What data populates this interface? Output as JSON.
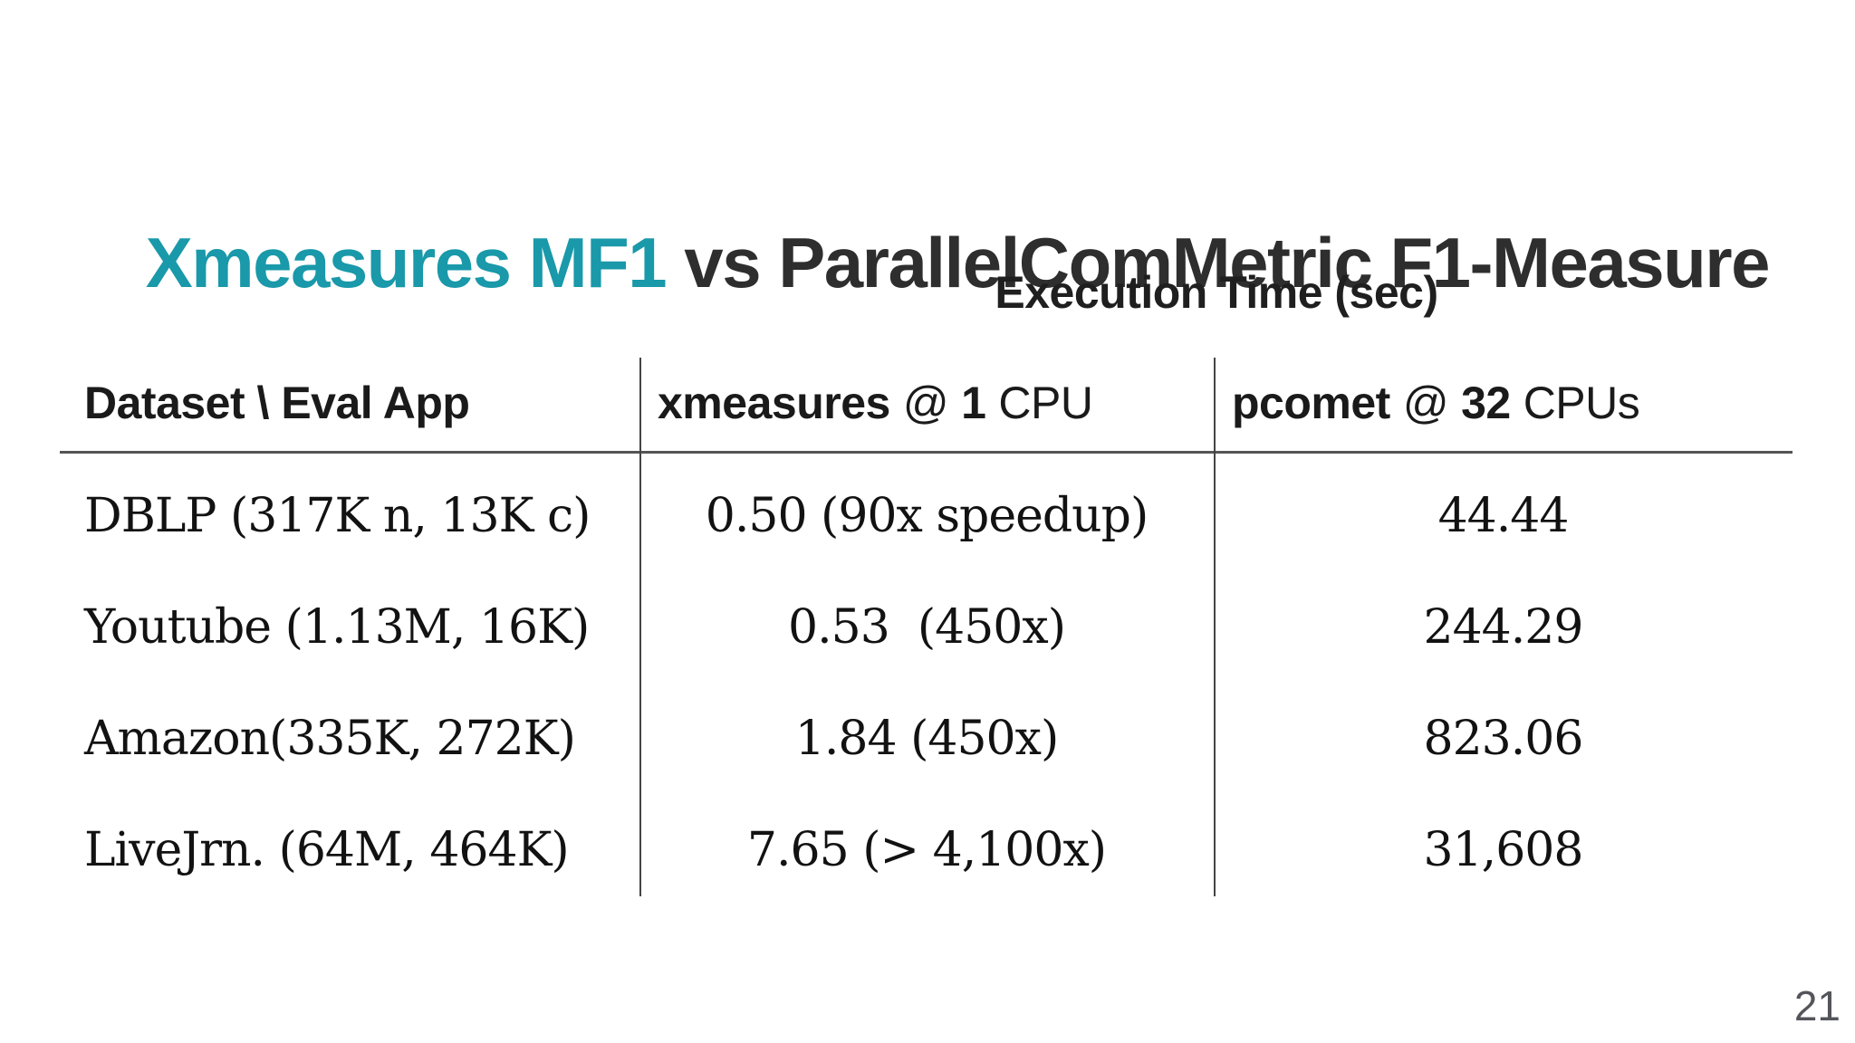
{
  "slide": {
    "title": {
      "highlight": "Xmeasures MF1",
      "rest": " vs ParallelComMetric F1-Measure"
    },
    "page_number": "21"
  },
  "colors": {
    "accent_teal": "#1999A9",
    "title_dark_gray": "#2E2E2E",
    "table_text_black": "#121212",
    "rule_gray": "#555555",
    "page_number_gray": "#54555B"
  },
  "table": {
    "group_header": "Execution Time (sec)",
    "row_header_column": {
      "label": "Dataset \\ Eval App"
    },
    "columns": [
      {
        "app": "xmeasures",
        "at": "@",
        "count": "1",
        "unit": "CPU"
      },
      {
        "app": "pcomet",
        "at": "@",
        "count": "32",
        "unit": "CPUs"
      }
    ],
    "rows": [
      {
        "dataset": "DBLP (317K n, 13K c)",
        "xmeasures_time": "0.50 (90x speedup)",
        "pcomet_time": "44.44"
      },
      {
        "dataset": "Youtube (1.13M, 16K)",
        "xmeasures_time": "0.53  (450x)",
        "pcomet_time": "244.29"
      },
      {
        "dataset": "Amazon(335K, 272K)",
        "xmeasures_time": "1.84 (450x)",
        "pcomet_time": "823.06"
      },
      {
        "dataset": "LiveJrn. (64M, 464K)",
        "xmeasures_time": "7.65 (> 4,100x)",
        "pcomet_time": "31,608"
      }
    ]
  }
}
